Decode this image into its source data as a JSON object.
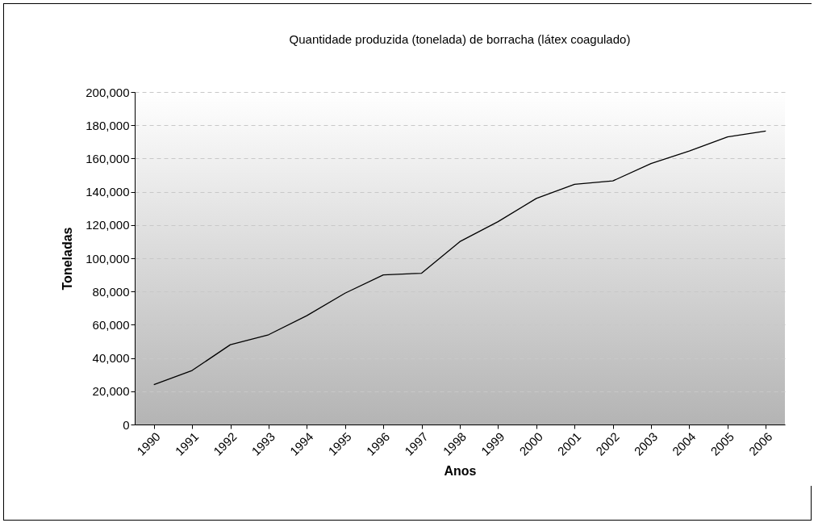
{
  "chart_data": {
    "type": "line",
    "title": "Quantidade produzida (tonelada) de borracha (látex coagulado)",
    "xlabel": "Anos",
    "ylabel": "Toneladas",
    "categories": [
      "1990",
      "1991",
      "1992",
      "1993",
      "1994",
      "1995",
      "1996",
      "1997",
      "1998",
      "1999",
      "2000",
      "2001",
      "2002",
      "2003",
      "2004",
      "2005",
      "2006"
    ],
    "series": [
      {
        "color": "#000000",
        "values": [
          24000,
          32500,
          48000,
          54000,
          65500,
          79000,
          90000,
          91000,
          110000,
          122000,
          136000,
          144500,
          146500,
          157000,
          164500,
          173000,
          176500
        ]
      }
    ],
    "ylim": [
      0,
      200000
    ],
    "yticks": [
      0,
      {
        "value": 20000,
        "label": "20,000"
      },
      {
        "value": 40000,
        "label": "40,000"
      },
      {
        "value": 60000,
        "label": "60,000"
      },
      {
        "value": 80000,
        "label": "80,000"
      },
      {
        "value": 100000,
        "label": "100,000"
      },
      {
        "value": 120000,
        "label": "120,000"
      },
      {
        "value": 140000,
        "label": "140,000"
      },
      {
        "value": 160000,
        "label": "160,000"
      },
      {
        "value": 180000,
        "label": "180,000"
      },
      {
        "value": 200000,
        "label": "200,000"
      }
    ],
    "grid": "y",
    "marker": "none",
    "line_style": "solid"
  }
}
